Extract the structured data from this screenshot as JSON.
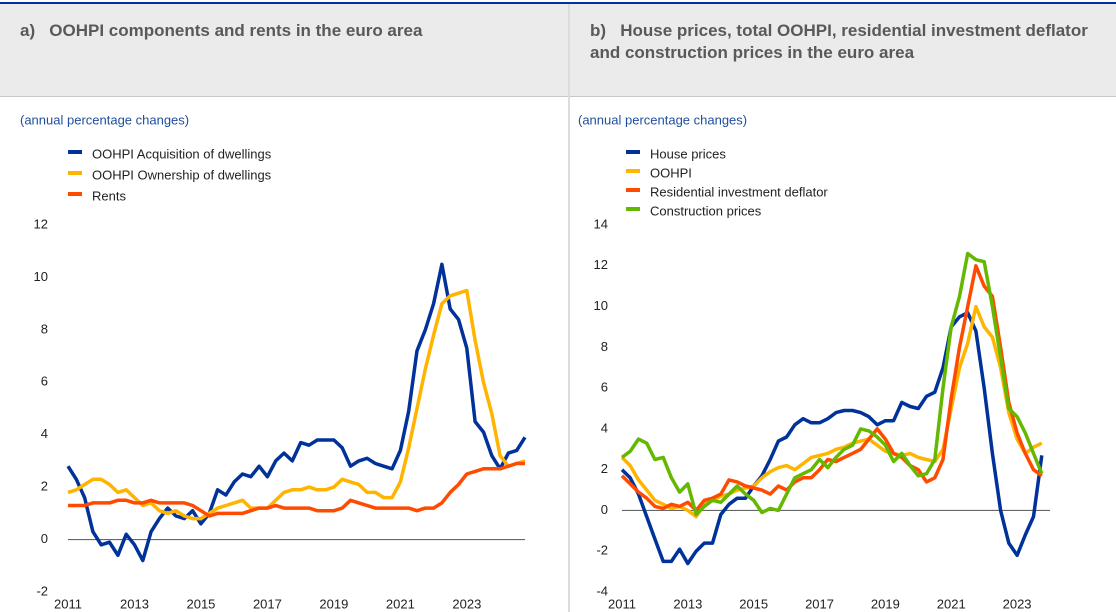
{
  "chart_data": [
    {
      "type": "line",
      "title": "a)   OOHPI components and rents in the euro area",
      "subtitle": "(annual percentage changes)",
      "x": [
        2011,
        2011.25,
        2011.5,
        2011.75,
        2012,
        2012.25,
        2012.5,
        2012.75,
        2013,
        2013.25,
        2013.5,
        2013.75,
        2014,
        2014.25,
        2014.5,
        2014.75,
        2015,
        2015.25,
        2015.5,
        2015.75,
        2016,
        2016.25,
        2016.5,
        2016.75,
        2017,
        2017.25,
        2017.5,
        2017.75,
        2018,
        2018.25,
        2018.5,
        2018.75,
        2019,
        2019.25,
        2019.5,
        2019.75,
        2020,
        2020.25,
        2020.5,
        2020.75,
        2021,
        2021.25,
        2021.5,
        2021.75,
        2022,
        2022.25,
        2022.5,
        2022.75,
        2023,
        2023.25,
        2023.5,
        2023.75,
        2024,
        2024.25,
        2024.5,
        2024.75
      ],
      "xlim": [
        2011,
        2024.75
      ],
      "xticks": [
        2011,
        2013,
        2015,
        2017,
        2019,
        2021,
        2023
      ],
      "ylim": [
        -2,
        12
      ],
      "yticks": [
        -2,
        0,
        2,
        4,
        6,
        8,
        10,
        12
      ],
      "legend": "top-left",
      "series": [
        {
          "name": "OOHPI Acquisition of dwellings",
          "color": "#003299",
          "values": [
            2.8,
            2.3,
            1.6,
            0.3,
            -0.2,
            -0.1,
            -0.6,
            0.2,
            -0.2,
            -0.8,
            0.3,
            0.8,
            1.2,
            0.9,
            0.8,
            1.1,
            0.6,
            1.0,
            1.9,
            1.7,
            2.2,
            2.5,
            2.4,
            2.8,
            2.4,
            3.0,
            3.3,
            3.0,
            3.7,
            3.6,
            3.8,
            3.8,
            3.8,
            3.5,
            2.8,
            3.0,
            3.1,
            2.9,
            2.8,
            2.7,
            3.4,
            4.9,
            7.2,
            8.0,
            9.0,
            10.5,
            8.8,
            8.4,
            7.3,
            4.5,
            4.1,
            3.2,
            2.7,
            3.3,
            3.4,
            3.9
          ]
        },
        {
          "name": "OOHPI Ownership of dwellings",
          "color": "#ffb400",
          "values": [
            1.8,
            1.9,
            2.1,
            2.3,
            2.3,
            2.1,
            1.8,
            1.9,
            1.6,
            1.3,
            1.4,
            1.1,
            1.0,
            1.1,
            0.9,
            0.8,
            0.8,
            1.0,
            1.2,
            1.3,
            1.4,
            1.5,
            1.2,
            1.2,
            1.2,
            1.5,
            1.8,
            1.9,
            1.9,
            2.0,
            1.9,
            1.9,
            2.0,
            2.3,
            2.2,
            2.1,
            1.8,
            1.8,
            1.6,
            1.6,
            2.2,
            3.5,
            5.0,
            6.5,
            7.8,
            9.0,
            9.3,
            9.4,
            9.5,
            7.6,
            6.0,
            4.8,
            3.2,
            2.8,
            2.9,
            3.0
          ]
        },
        {
          "name": "Rents",
          "color": "#ff4b00",
          "values": [
            1.3,
            1.3,
            1.3,
            1.4,
            1.4,
            1.4,
            1.5,
            1.5,
            1.4,
            1.4,
            1.5,
            1.4,
            1.4,
            1.4,
            1.4,
            1.3,
            1.1,
            0.9,
            1.0,
            1.0,
            1.0,
            1.0,
            1.1,
            1.2,
            1.2,
            1.3,
            1.2,
            1.2,
            1.2,
            1.2,
            1.1,
            1.1,
            1.1,
            1.2,
            1.5,
            1.4,
            1.3,
            1.2,
            1.2,
            1.2,
            1.2,
            1.2,
            1.1,
            1.2,
            1.2,
            1.4,
            1.8,
            2.1,
            2.5,
            2.6,
            2.7,
            2.7,
            2.7,
            2.8,
            2.9,
            2.9
          ]
        }
      ]
    },
    {
      "type": "line",
      "title": "b)   House prices, total OOHPI, residential investment deflator and construction prices in the euro area",
      "subtitle": "(annual percentage changes)",
      "x": [
        2011,
        2011.25,
        2011.5,
        2011.75,
        2012,
        2012.25,
        2012.5,
        2012.75,
        2013,
        2013.25,
        2013.5,
        2013.75,
        2014,
        2014.25,
        2014.5,
        2014.75,
        2015,
        2015.25,
        2015.5,
        2015.75,
        2016,
        2016.25,
        2016.5,
        2016.75,
        2017,
        2017.25,
        2017.5,
        2017.75,
        2018,
        2018.25,
        2018.5,
        2018.75,
        2019,
        2019.25,
        2019.5,
        2019.75,
        2020,
        2020.25,
        2020.5,
        2020.75,
        2021,
        2021.25,
        2021.5,
        2021.75,
        2022,
        2022.25,
        2022.5,
        2022.75,
        2023,
        2023.25,
        2023.5,
        2023.75
      ],
      "xlim": [
        2011,
        2024
      ],
      "xticks": [
        2011,
        2013,
        2015,
        2017,
        2019,
        2021,
        2023
      ],
      "ylim": [
        -4,
        14
      ],
      "yticks": [
        -4,
        -2,
        0,
        2,
        4,
        6,
        8,
        10,
        12,
        14
      ],
      "legend": "top-left",
      "series": [
        {
          "name": "House prices",
          "color": "#003299",
          "values": [
            2.0,
            1.6,
            0.8,
            -0.3,
            -1.4,
            -2.5,
            -2.5,
            -1.9,
            -2.6,
            -2.0,
            -1.6,
            -1.6,
            -0.2,
            0.3,
            0.6,
            0.6,
            1.2,
            1.7,
            2.5,
            3.4,
            3.6,
            4.2,
            4.5,
            4.3,
            4.3,
            4.5,
            4.8,
            4.9,
            4.9,
            4.8,
            4.6,
            4.2,
            4.4,
            4.4,
            5.3,
            5.1,
            5.0,
            5.6,
            5.8,
            7.0,
            9.0,
            9.5,
            9.7,
            8.8,
            6.0,
            2.8,
            0.0,
            -1.6,
            -2.2,
            -1.2,
            -0.3,
            2.7
          ]
        },
        {
          "name": "OOHPI",
          "color": "#ffb400",
          "values": [
            2.6,
            2.2,
            1.5,
            1.0,
            0.5,
            0.3,
            0.1,
            0.2,
            0.0,
            -0.3,
            0.3,
            0.5,
            0.7,
            0.8,
            1.0,
            1.1,
            1.2,
            1.6,
            1.9,
            2.1,
            2.2,
            2.0,
            2.3,
            2.6,
            2.7,
            2.8,
            3.0,
            3.1,
            3.3,
            3.4,
            3.5,
            3.2,
            2.9,
            2.8,
            2.7,
            2.8,
            2.6,
            2.5,
            2.4,
            3.0,
            5.0,
            7.0,
            8.2,
            10.0,
            9.0,
            8.5,
            7.0,
            4.8,
            3.5,
            2.8,
            3.1,
            3.3
          ]
        },
        {
          "name": "Residential investment deflator",
          "color": "#ff4b00",
          "values": [
            1.7,
            1.3,
            0.9,
            0.6,
            0.2,
            0.1,
            0.3,
            0.2,
            0.4,
            0.0,
            0.5,
            0.6,
            0.8,
            1.5,
            1.4,
            1.2,
            1.1,
            1.0,
            0.8,
            1.2,
            1.0,
            1.4,
            1.6,
            1.6,
            2.0,
            2.5,
            2.4,
            2.6,
            2.8,
            3.0,
            3.5,
            4.0,
            3.5,
            2.8,
            2.6,
            2.2,
            2.0,
            1.4,
            1.6,
            2.5,
            5.5,
            8.0,
            10.0,
            12.0,
            11.0,
            10.5,
            8.0,
            5.3,
            3.8,
            2.8,
            2.0,
            1.7
          ]
        },
        {
          "name": "Construction prices",
          "color": "#65b800",
          "values": [
            2.6,
            2.9,
            3.5,
            3.3,
            2.5,
            2.6,
            1.6,
            0.9,
            1.3,
            -0.2,
            0.2,
            0.5,
            0.4,
            0.8,
            1.2,
            0.8,
            0.5,
            -0.1,
            0.1,
            0.0,
            0.8,
            1.6,
            1.8,
            2.0,
            2.5,
            2.1,
            2.6,
            3.0,
            3.2,
            4.0,
            3.9,
            3.6,
            3.2,
            2.4,
            2.8,
            2.2,
            1.7,
            1.8,
            2.5,
            6.0,
            9.0,
            10.5,
            12.6,
            12.3,
            12.2,
            10.0,
            7.5,
            5.0,
            4.6,
            3.8,
            2.8,
            1.8
          ]
        }
      ]
    }
  ]
}
